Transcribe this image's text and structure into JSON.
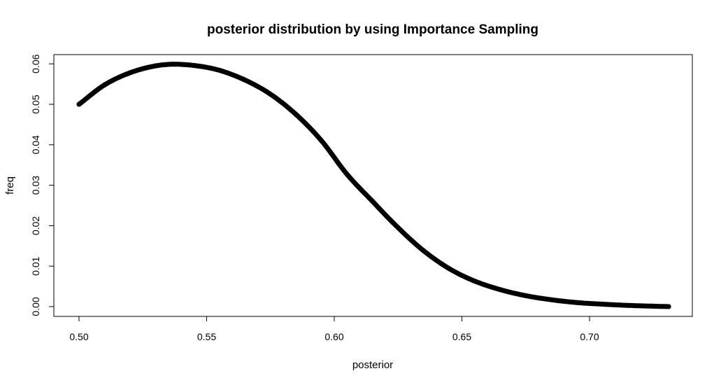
{
  "chart_data": {
    "type": "line",
    "title": "posterior distribution by using Importance Sampling",
    "xlabel": "posterior",
    "ylabel": "freq",
    "xlim": [
      0.5,
      0.73
    ],
    "ylim": [
      0,
      0.06
    ],
    "x_ticks": [
      "0.50",
      "0.55",
      "0.60",
      "0.65",
      "0.70"
    ],
    "y_ticks": [
      "0.00",
      "0.01",
      "0.02",
      "0.03",
      "0.04",
      "0.05",
      "0.06"
    ],
    "grid": false,
    "legend": "none",
    "series": [
      {
        "color": "#000000",
        "x": [
          0.5,
          0.51,
          0.52,
          0.53,
          0.537,
          0.545,
          0.555,
          0.565,
          0.575,
          0.585,
          0.595,
          0.605,
          0.615,
          0.625,
          0.635,
          0.645,
          0.655,
          0.665,
          0.675,
          0.685,
          0.695,
          0.705,
          0.715,
          0.725,
          0.731
        ],
        "y": [
          0.05,
          0.0548,
          0.0578,
          0.0595,
          0.0599,
          0.0596,
          0.0584,
          0.056,
          0.0525,
          0.0475,
          0.041,
          0.0327,
          0.026,
          0.0195,
          0.0138,
          0.0094,
          0.0063,
          0.0042,
          0.0027,
          0.0017,
          0.001,
          0.0006,
          0.0003,
          0.0001,
          0.0
        ]
      }
    ]
  }
}
